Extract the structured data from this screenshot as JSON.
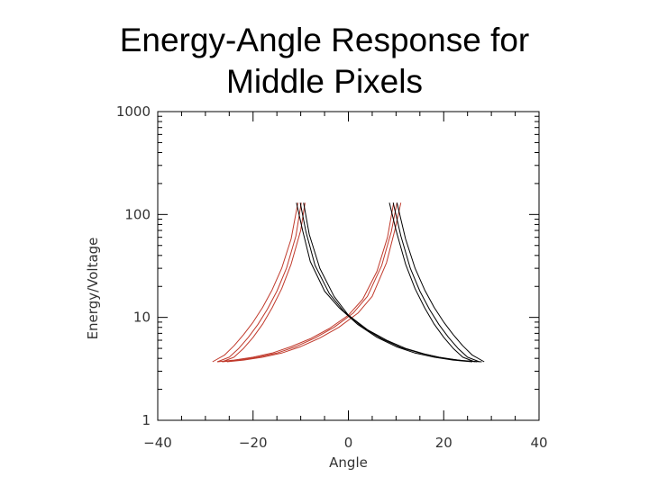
{
  "title_line1": "Energy-Angle Response for",
  "title_line2": "Middle Pixels",
  "chart_data": {
    "type": "line",
    "xlabel": "Angle",
    "ylabel": "Energy/Voltage",
    "xlim": [
      -40,
      40
    ],
    "ylim": [
      1,
      1000
    ],
    "y_scale": "log",
    "x_ticks": [
      -40,
      -20,
      0,
      20,
      40
    ],
    "x_tick_labels": [
      "−40",
      "−20",
      "0",
      "20",
      "40"
    ],
    "y_ticks": [
      1,
      10,
      100,
      1000
    ],
    "y_tick_labels": [
      "1",
      "10",
      "100",
      "1000"
    ],
    "grid": false,
    "colors": {
      "red": "#c0392b",
      "black": "#000000"
    },
    "series": [
      {
        "color": "red",
        "x": [
          -10.6,
          -12,
          -14,
          -16,
          -18,
          -20,
          -22,
          -24,
          -26,
          -28.5
        ],
        "y": [
          130,
          58,
          30,
          18.5,
          12.5,
          9,
          6.8,
          5.3,
          4.3,
          3.7
        ]
      },
      {
        "color": "red",
        "x": [
          -9.9,
          -11,
          -13,
          -15,
          -17,
          -19,
          -21,
          -23,
          -25,
          -27.5
        ],
        "y": [
          130,
          62,
          30,
          18,
          12,
          8.5,
          6.4,
          5,
          4.1,
          3.7
        ]
      },
      {
        "color": "red",
        "x": [
          -9.1,
          -10,
          -12,
          -14,
          -16,
          -18,
          -20,
          -22,
          -24,
          -26.5
        ],
        "y": [
          130,
          70,
          33,
          19,
          12.4,
          8.6,
          6.4,
          5,
          4.1,
          3.7
        ]
      },
      {
        "color": "red",
        "x": [
          -27.5,
          -24,
          -20,
          -16,
          -12,
          -8,
          -4,
          0,
          3,
          6,
          8.2,
          9.5
        ],
        "y": [
          3.7,
          3.85,
          4.1,
          4.5,
          5.2,
          6.2,
          7.8,
          10.5,
          15,
          28,
          60,
          130
        ]
      },
      {
        "color": "red",
        "x": [
          -26.5,
          -23,
          -19,
          -15,
          -11,
          -7,
          -3,
          1,
          4,
          7,
          9,
          10.2
        ],
        "y": [
          3.7,
          3.85,
          4.1,
          4.5,
          5.2,
          6.3,
          8,
          11,
          16,
          32,
          68,
          130
        ]
      },
      {
        "color": "red",
        "x": [
          -25.5,
          -22,
          -18,
          -14,
          -10,
          -6,
          -2,
          2,
          5,
          8,
          9.8,
          11
        ],
        "y": [
          3.7,
          3.85,
          4.1,
          4.5,
          5.2,
          6.3,
          8,
          11,
          16,
          34,
          72,
          130
        ]
      },
      {
        "color": "black",
        "x": [
          -10.9,
          -9.6,
          -8,
          -5,
          -2,
          2,
          6,
          10,
          14,
          18,
          22,
          26
        ],
        "y": [
          130,
          70,
          35,
          18,
          12.5,
          8.5,
          6.4,
          5.2,
          4.5,
          4.1,
          3.85,
          3.7
        ]
      },
      {
        "color": "black",
        "x": [
          -10.1,
          -8.9,
          -7,
          -4,
          -1,
          3,
          7,
          11,
          15,
          19,
          23,
          27
        ],
        "y": [
          130,
          68,
          32,
          17,
          11.5,
          8,
          6.2,
          5.1,
          4.5,
          4.1,
          3.85,
          3.7
        ]
      },
      {
        "color": "black",
        "x": [
          -9.4,
          -8.2,
          -6,
          -3,
          0,
          4,
          8,
          12,
          16,
          20,
          24,
          28
        ],
        "y": [
          130,
          64,
          30,
          16,
          10.5,
          7.6,
          6,
          5,
          4.4,
          4,
          3.8,
          3.7
        ]
      },
      {
        "color": "black",
        "x": [
          8.6,
          10,
          12,
          14,
          16,
          18,
          20,
          22,
          24,
          26.5
        ],
        "y": [
          130,
          70,
          33,
          19,
          12.4,
          8.6,
          6.4,
          5,
          4.1,
          3.7
        ]
      },
      {
        "color": "black",
        "x": [
          9.4,
          11,
          13,
          15,
          17,
          19,
          21,
          23,
          25,
          27.5
        ],
        "y": [
          130,
          62,
          30,
          18,
          12,
          8.5,
          6.4,
          5,
          4.1,
          3.7
        ]
      },
      {
        "color": "black",
        "x": [
          10.2,
          12,
          14,
          16,
          18,
          20,
          22,
          24,
          26,
          28.5
        ],
        "y": [
          130,
          58,
          30,
          18.5,
          12.5,
          9,
          6.8,
          5.3,
          4.3,
          3.7
        ]
      }
    ]
  }
}
